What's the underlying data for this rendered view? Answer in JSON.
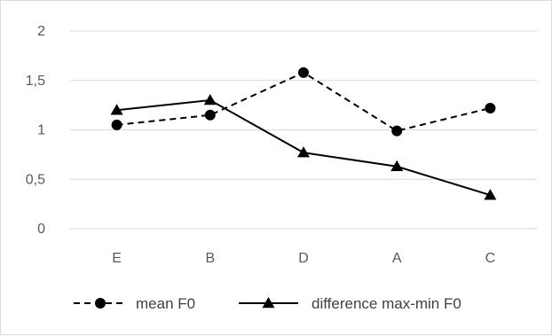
{
  "chart_data": {
    "type": "line",
    "categories": [
      "E",
      "B",
      "D",
      "A",
      "C"
    ],
    "ylim": [
      0,
      2
    ],
    "yticks": [
      0,
      0.5,
      1,
      1.5,
      2
    ],
    "ytick_labels": [
      "0",
      "0,5",
      "1",
      "1,5",
      "2"
    ],
    "grid": "horizontal",
    "legend_position": "bottom",
    "series": [
      {
        "name": "mean F0",
        "values": [
          1.05,
          1.15,
          1.58,
          0.99,
          1.22
        ],
        "line_style": "dashed",
        "marker": "circle",
        "color": "#000000"
      },
      {
        "name": "difference max-min F0",
        "values": [
          1.2,
          1.3,
          0.77,
          0.63,
          0.34
        ],
        "line_style": "solid",
        "marker": "triangle",
        "color": "#000000"
      }
    ]
  }
}
